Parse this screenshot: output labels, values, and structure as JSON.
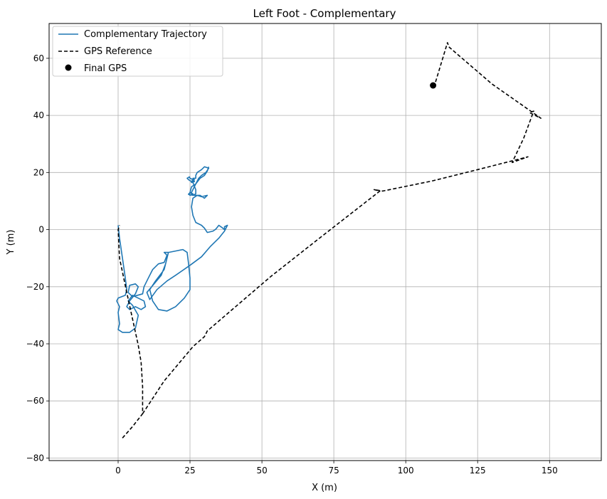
{
  "chart_data": {
    "type": "line",
    "title": "Left Foot - Complementary",
    "xlabel": "X (m)",
    "ylabel": "Y (m)",
    "xlim": [
      -24,
      168
    ],
    "ylim": [
      -80.9,
      72.2
    ],
    "x_ticks": [
      0,
      25,
      50,
      75,
      100,
      125,
      150
    ],
    "y_ticks": [
      -80,
      -60,
      -40,
      -20,
      0,
      20,
      40,
      60
    ],
    "grid": true,
    "legend_position": "top-left",
    "series": [
      {
        "name": "Complementary Trajectory",
        "style": "solid",
        "color": "#1f77b4",
        "points": [
          [
            0,
            1.5
          ],
          [
            0.5,
            -3
          ],
          [
            1.5,
            -10
          ],
          [
            2.5,
            -17
          ],
          [
            3,
            -21
          ],
          [
            2.5,
            -23
          ],
          [
            0,
            -24
          ],
          [
            -0.5,
            -25
          ],
          [
            0.5,
            -27
          ],
          [
            0,
            -29
          ],
          [
            0.5,
            -33
          ],
          [
            0,
            -35
          ],
          [
            1.5,
            -36
          ],
          [
            4,
            -36
          ],
          [
            6,
            -34.5
          ],
          [
            7,
            -30
          ],
          [
            5,
            -26.5
          ],
          [
            3.5,
            -25
          ],
          [
            5,
            -23
          ],
          [
            7,
            -24
          ],
          [
            9,
            -25
          ],
          [
            9.5,
            -27
          ],
          [
            8,
            -28
          ],
          [
            6,
            -27
          ],
          [
            4,
            -28
          ],
          [
            3,
            -27
          ],
          [
            4,
            -25
          ],
          [
            6,
            -22.5
          ],
          [
            7,
            -20
          ],
          [
            6,
            -19
          ],
          [
            4,
            -19.5
          ],
          [
            3.5,
            -22
          ],
          [
            5,
            -23.5
          ],
          [
            8.5,
            -22.5
          ],
          [
            9,
            -20
          ],
          [
            10.5,
            -17
          ],
          [
            12,
            -14
          ],
          [
            14,
            -12
          ],
          [
            16,
            -11.5
          ],
          [
            17,
            -9
          ],
          [
            16,
            -8
          ],
          [
            17.5,
            -8
          ],
          [
            16,
            -14
          ],
          [
            13,
            -18
          ],
          [
            11,
            -21
          ],
          [
            12,
            -25
          ],
          [
            14,
            -28
          ],
          [
            17,
            -28.5
          ],
          [
            20,
            -27
          ],
          [
            23,
            -24
          ],
          [
            25,
            -21
          ],
          [
            25,
            -17
          ],
          [
            24.5,
            -12
          ],
          [
            24,
            -8
          ],
          [
            22.5,
            -7
          ],
          [
            20,
            -7.5
          ],
          [
            17.5,
            -8
          ],
          [
            16.5,
            -12
          ],
          [
            15,
            -16
          ],
          [
            12.5,
            -19
          ],
          [
            10,
            -22
          ],
          [
            11,
            -24.5
          ],
          [
            13.5,
            -21
          ],
          [
            17,
            -18
          ],
          [
            20,
            -16
          ],
          [
            25,
            -12.5
          ],
          [
            29,
            -9.5
          ],
          [
            32,
            -6
          ],
          [
            35,
            -3
          ],
          [
            37,
            -0.5
          ],
          [
            38,
            1.5
          ],
          [
            37,
            1
          ],
          [
            37,
            0
          ],
          [
            36,
            0.8
          ],
          [
            35,
            1.5
          ],
          [
            34,
            0.2
          ],
          [
            33,
            -0.5
          ],
          [
            31,
            -1
          ],
          [
            30,
            0.5
          ],
          [
            29,
            1.5
          ],
          [
            27,
            2.5
          ],
          [
            26,
            5
          ],
          [
            25.5,
            8
          ],
          [
            26,
            11
          ],
          [
            27.5,
            12
          ],
          [
            29,
            11.5
          ],
          [
            31,
            12
          ],
          [
            30,
            11
          ],
          [
            28.5,
            12
          ],
          [
            26.5,
            12
          ],
          [
            25,
            13
          ],
          [
            25.5,
            15
          ],
          [
            27,
            16
          ],
          [
            28,
            18
          ],
          [
            29,
            19
          ],
          [
            30.5,
            20
          ],
          [
            31.5,
            21.5
          ],
          [
            30,
            22
          ],
          [
            29,
            21
          ],
          [
            27.5,
            20
          ],
          [
            27,
            19
          ],
          [
            27,
            18
          ],
          [
            26,
            18
          ],
          [
            26.5,
            17.5
          ],
          [
            26,
            17.5
          ],
          [
            25.5,
            16.5
          ],
          [
            26.5,
            16.8
          ],
          [
            25.5,
            17
          ],
          [
            25.5,
            16.5
          ],
          [
            26.5,
            17
          ],
          [
            26,
            17.5
          ],
          [
            25,
            18
          ],
          [
            24.8,
            18.5
          ],
          [
            24,
            18
          ],
          [
            24.5,
            17.5
          ],
          [
            26,
            16.5
          ],
          [
            27,
            14
          ],
          [
            27,
            12.5
          ],
          [
            26,
            12
          ],
          [
            24.5,
            12.3
          ],
          [
            25,
            13
          ],
          [
            26,
            12.5
          ],
          [
            25,
            12
          ],
          [
            24.5,
            12.5
          ],
          [
            25.5,
            13
          ],
          [
            26,
            14
          ],
          [
            27,
            16
          ],
          [
            28.5,
            18
          ],
          [
            30,
            19
          ],
          [
            31,
            20.5
          ],
          [
            31.5,
            22
          ]
        ]
      },
      {
        "name": "GPS Reference",
        "style": "dashed",
        "color": "#000000",
        "points": [
          [
            1.5,
            -73
          ],
          [
            5,
            -69
          ],
          [
            8.5,
            -64.5
          ],
          [
            8.5,
            -55
          ],
          [
            8,
            -46.5
          ],
          [
            7,
            -40.5
          ],
          [
            3,
            -22
          ],
          [
            0.5,
            -10
          ],
          [
            0,
            0
          ],
          [
            0.5,
            1.5
          ]
        ]
      },
      {
        "name": "",
        "style": "dashed",
        "color": "#000000",
        "points": [
          [
            8.5,
            -64.5
          ],
          [
            16,
            -53
          ],
          [
            26,
            -41
          ],
          [
            30,
            -37.5
          ],
          [
            31,
            -35.5
          ],
          [
            53,
            -16.5
          ],
          [
            70,
            -3
          ],
          [
            91,
            13.5
          ],
          [
            89,
            14
          ],
          [
            92,
            13.5
          ],
          [
            109,
            17
          ],
          [
            125,
            21
          ],
          [
            142.5,
            25.5
          ],
          [
            137,
            23.5
          ],
          [
            141,
            32
          ],
          [
            144.5,
            41.5
          ],
          [
            143,
            41
          ],
          [
            147,
            39
          ],
          [
            130,
            51
          ],
          [
            115,
            64
          ],
          [
            114.5,
            65.5
          ],
          [
            110,
            50.5
          ]
        ]
      },
      {
        "name": "Final GPS",
        "style": "marker",
        "color": "#000000",
        "points": [
          [
            109.5,
            50.5
          ]
        ]
      }
    ]
  }
}
